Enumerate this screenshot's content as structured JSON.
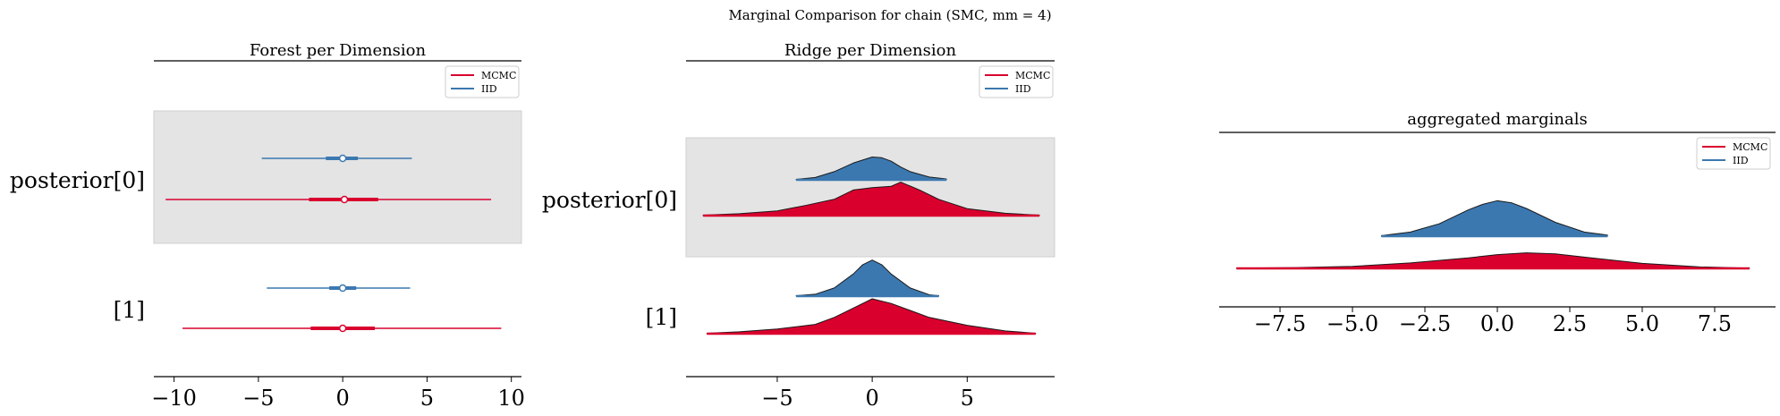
{
  "suptitle": "Marginal Comparison for chain (SMC, mm = 4)",
  "colors": {
    "mcmc": "#d9002e",
    "iid": "#3c78b0",
    "band": "#e4e4e4",
    "band_edge": "#cfcfcf"
  },
  "legend": {
    "mcmc": "MCMC",
    "iid": "IID"
  },
  "chart_data": [
    {
      "type": "forest",
      "title": "Forest per Dimension",
      "xlim": [
        -11.2,
        10.6
      ],
      "xticks": [
        -10,
        -5,
        0,
        5,
        10
      ],
      "xtick_labels": [
        "−10",
        "−5",
        "0",
        "5",
        "10"
      ],
      "ylabels": [
        "posterior[0]",
        "[1]"
      ],
      "legend_position": "upper right",
      "series": [
        {
          "name": "MCMC",
          "key": "mcmc",
          "rows": [
            {
              "median": 0.1,
              "hdi_50": [
                -2.0,
                2.1
              ],
              "hdi_94": [
                -10.5,
                8.8
              ]
            },
            {
              "median": 0.0,
              "hdi_50": [
                -1.9,
                1.9
              ],
              "hdi_94": [
                -9.5,
                9.4
              ]
            }
          ]
        },
        {
          "name": "IID",
          "key": "iid",
          "rows": [
            {
              "median": 0.0,
              "hdi_50": [
                -1.0,
                0.9
              ],
              "hdi_94": [
                -4.8,
                4.1
              ]
            },
            {
              "median": 0.0,
              "hdi_50": [
                -0.8,
                0.8
              ],
              "hdi_94": [
                -4.5,
                4.0
              ]
            }
          ]
        }
      ]
    },
    {
      "type": "ridgeline",
      "title": "Ridge per Dimension",
      "xlim": [
        -9.8,
        9.6
      ],
      "xticks": [
        -5,
        0,
        5
      ],
      "xtick_labels": [
        "−5",
        "0",
        "5"
      ],
      "ylabels": [
        "posterior[0]",
        "[1]"
      ],
      "legend_position": "upper right",
      "series": [
        {
          "name": "MCMC",
          "key": "mcmc",
          "rows": [
            {
              "x": [
                -8.9,
                -7,
                -5,
                -3.5,
                -2,
                -1,
                0,
                1,
                1.5,
                2.5,
                3.5,
                5,
                7,
                8.8
              ],
              "density": [
                0.01,
                0.04,
                0.1,
                0.22,
                0.35,
                0.55,
                0.6,
                0.63,
                0.72,
                0.55,
                0.35,
                0.15,
                0.05,
                0.01
              ]
            },
            {
              "x": [
                -8.7,
                -7,
                -5,
                -3,
                -2,
                -1,
                0,
                1,
                2,
                3,
                5,
                7,
                8.6
              ],
              "density": [
                0.01,
                0.04,
                0.1,
                0.2,
                0.35,
                0.55,
                0.75,
                0.65,
                0.5,
                0.35,
                0.18,
                0.06,
                0.01
              ]
            }
          ]
        },
        {
          "name": "IID",
          "key": "iid",
          "rows": [
            {
              "x": [
                -4.0,
                -3.0,
                -2.0,
                -1.0,
                -0.5,
                0,
                0.5,
                1.0,
                1.5,
                2.0,
                3.0,
                3.9
              ],
              "density": [
                0.02,
                0.1,
                0.35,
                0.72,
                0.85,
                0.98,
                0.95,
                0.8,
                0.55,
                0.35,
                0.12,
                0.04
              ]
            },
            {
              "x": [
                -4.0,
                -3.0,
                -2.0,
                -1.0,
                -0.5,
                0,
                0.5,
                1.0,
                2.0,
                3.0,
                3.5
              ],
              "density": [
                0.02,
                0.08,
                0.35,
                0.95,
                1.35,
                1.55,
                1.35,
                0.95,
                0.35,
                0.06,
                0.02
              ]
            }
          ]
        }
      ]
    },
    {
      "type": "ridgeline",
      "title": "aggregated marginals",
      "xlim": [
        -9.6,
        9.6
      ],
      "xticks": [
        -7.5,
        -5.0,
        -2.5,
        0.0,
        2.5,
        5.0,
        7.5
      ],
      "xtick_labels": [
        "−7.5",
        "−5.0",
        "−2.5",
        "0.0",
        "2.5",
        "5.0",
        "7.5"
      ],
      "legend_position": "upper right",
      "series": [
        {
          "name": "MCMC",
          "key": "mcmc",
          "rows": [
            {
              "x": [
                -9.0,
                -7,
                -5,
                -3,
                -1,
                0,
                1,
                2,
                3,
                5,
                7,
                8.7
              ],
              "density": [
                0.01,
                0.03,
                0.08,
                0.22,
                0.42,
                0.55,
                0.62,
                0.58,
                0.45,
                0.2,
                0.06,
                0.01
              ]
            }
          ]
        },
        {
          "name": "IID",
          "key": "iid",
          "rows": [
            {
              "x": [
                -4.0,
                -3.0,
                -2.0,
                -1.0,
                -0.5,
                0,
                0.5,
                1.0,
                2.0,
                3.0,
                3.8
              ],
              "density": [
                0.02,
                0.15,
                0.45,
                0.95,
                1.15,
                1.28,
                1.2,
                1.0,
                0.5,
                0.15,
                0.04
              ]
            }
          ]
        }
      ]
    }
  ]
}
